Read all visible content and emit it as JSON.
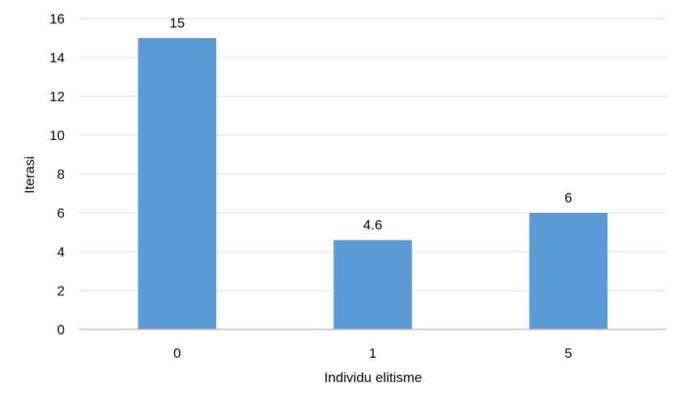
{
  "chart_data": {
    "type": "bar",
    "categories": [
      "0",
      "1",
      "5"
    ],
    "values": [
      15,
      4.6,
      6
    ],
    "data_labels": [
      "15",
      "4.6",
      "6"
    ],
    "title": "",
    "xlabel": "Individu elitisme",
    "ylabel": "Iterasi",
    "ylim": [
      0,
      16
    ],
    "yticks": [
      0,
      2,
      4,
      6,
      8,
      10,
      12,
      14,
      16
    ],
    "grid": true,
    "legend": "none",
    "colors": {
      "bar": "#5b9bd5",
      "grid": "#d9d9d9",
      "axis": "#bfbfbf",
      "text": "#000000"
    }
  }
}
